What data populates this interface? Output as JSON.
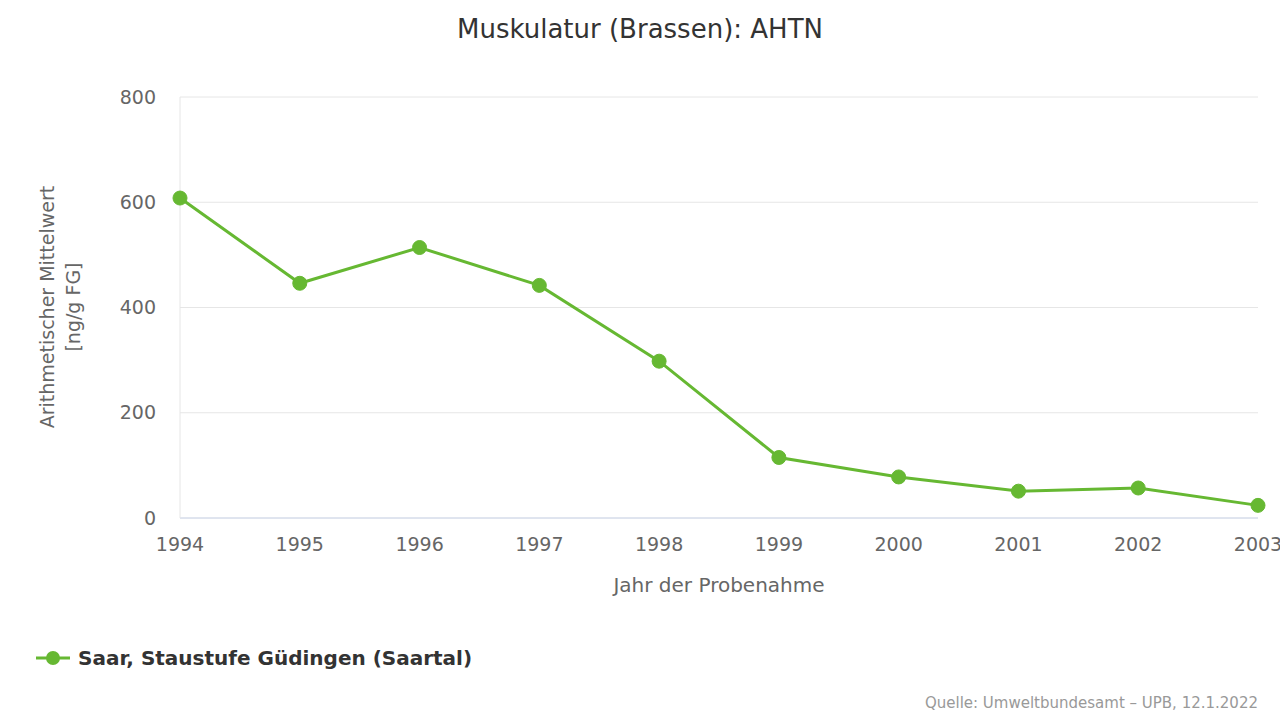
{
  "chart_data": {
    "type": "line",
    "title": "Muskulatur (Brassen): AHTN",
    "categories": [
      "1994",
      "1995",
      "1996",
      "1997",
      "1998",
      "1999",
      "2000",
      "2001",
      "2002",
      "2003"
    ],
    "series": [
      {
        "name": "Saar, Staustufe Güdingen (Saartal)",
        "color": "#66b832",
        "marker": "circle",
        "values": [
          608,
          446,
          514,
          442,
          298,
          115,
          78,
          51,
          57,
          24
        ]
      }
    ],
    "x_label": "Jahr der Probenahme",
    "y_label": [
      "Arithmetischer Mittelwert",
      "[ng/g FG]"
    ],
    "ylim": [
      0,
      800
    ],
    "yticks": [
      0,
      200,
      400,
      600,
      800
    ],
    "grid": true,
    "legend": "bottom left",
    "source": "Quelle: Umweltbundesamt – UPB, 12.1.2022"
  }
}
